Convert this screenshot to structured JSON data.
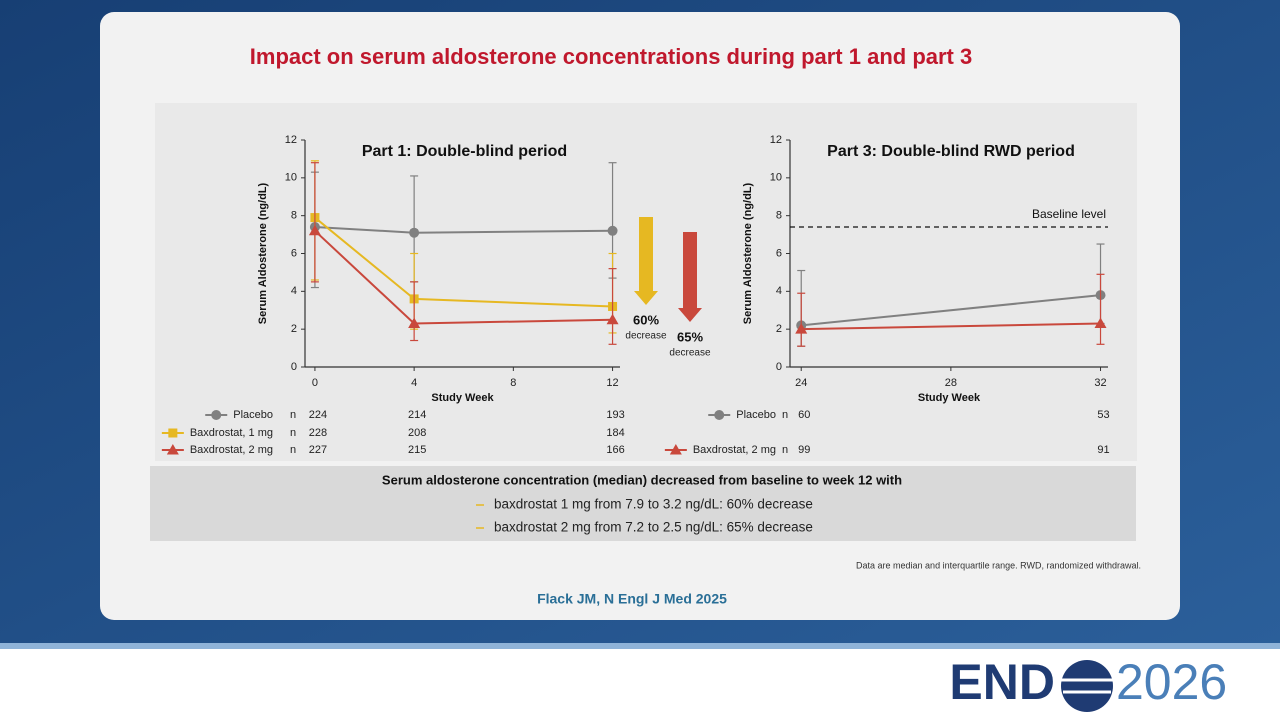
{
  "slide_title": "Impact on serum aldosterone concentrations during part 1 and part 3",
  "chart_data": [
    {
      "type": "line",
      "title": "Part 1: Double-blind period",
      "x_label": "Study Week",
      "y_label": "Serum Aldosterone (ng/dL)",
      "x": [
        0,
        4,
        12
      ],
      "xlim": [
        -0.4,
        12.3
      ],
      "xticks": [
        0,
        4,
        8,
        12
      ],
      "ylim": [
        0,
        12
      ],
      "yticks": [
        0,
        2,
        4,
        6,
        8,
        10,
        12
      ],
      "n_label": "n",
      "series": [
        {
          "name": "Placebo",
          "color": "#808080",
          "marker": "circle",
          "values": [
            7.4,
            7.1,
            7.2
          ],
          "q1": [
            4.2,
            4.5,
            4.7
          ],
          "q3": [
            10.3,
            10.1,
            10.8
          ],
          "n": [
            224,
            214,
            193
          ]
        },
        {
          "name": "Baxdrostat, 1 mg",
          "color": "#e6b822",
          "marker": "square",
          "values": [
            7.9,
            3.6,
            3.2
          ],
          "q1": [
            4.6,
            2.0,
            1.8
          ],
          "q3": [
            10.9,
            6.0,
            6.0
          ],
          "n": [
            228,
            208,
            184
          ]
        },
        {
          "name": "Baxdrostat, 2 mg",
          "color": "#c9483c",
          "marker": "triangle",
          "values": [
            7.2,
            2.3,
            2.5
          ],
          "q1": [
            4.5,
            1.4,
            1.2
          ],
          "q3": [
            10.8,
            4.5,
            5.2
          ],
          "n": [
            227,
            215,
            166
          ]
        }
      ],
      "annotations": [
        {
          "text": "60%",
          "subtext": "decrease",
          "color": "#e6b822"
        },
        {
          "text": "65%",
          "subtext": "decrease",
          "color": "#c9483c"
        }
      ]
    },
    {
      "type": "line",
      "title": "Part 3: Double-blind RWD period",
      "x_label": "Study Week",
      "y_label": "Serum Aldosterone (ng/dL)",
      "x": [
        24,
        32
      ],
      "xlim": [
        23.7,
        32.2
      ],
      "xticks": [
        24,
        28,
        32
      ],
      "ylim": [
        0,
        12
      ],
      "yticks": [
        0,
        2,
        4,
        6,
        8,
        10,
        12
      ],
      "n_label": "n",
      "reference_line": {
        "value": 7.4,
        "label": "Baseline level"
      },
      "series": [
        {
          "name": "Placebo",
          "color": "#808080",
          "marker": "circle",
          "values": [
            2.2,
            3.8
          ],
          "q1": [
            1.1,
            2.3
          ],
          "q3": [
            5.1,
            6.5
          ],
          "n": [
            60,
            53
          ]
        },
        {
          "name": "Baxdrostat, 2 mg",
          "color": "#c9483c",
          "marker": "triangle",
          "values": [
            2.0,
            2.3
          ],
          "q1": [
            1.1,
            1.2
          ],
          "q3": [
            3.9,
            4.9
          ],
          "n": [
            99,
            91
          ]
        }
      ]
    }
  ],
  "summary": {
    "heading": "Serum aldosterone concentration (median) decreased from baseline to week 12 with",
    "bullets": [
      "baxdrostat 1 mg from 7.9 to 3.2 ng/dL: 60% decrease",
      "baxdrostat 2 mg from 7.2 to 2.5 ng/dL: 65% decrease"
    ]
  },
  "footnote": "Data are median and interquartile range. RWD, randomized withdrawal.",
  "citation": "Flack JM, N Engl J Med 2025",
  "logo": {
    "left": "END",
    "right": "2026"
  }
}
